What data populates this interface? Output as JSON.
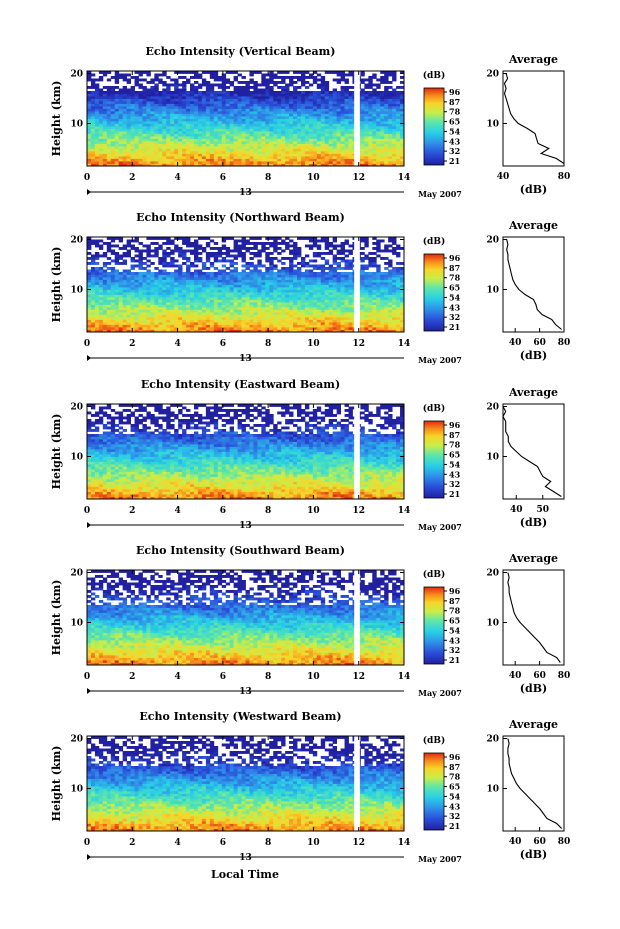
{
  "chart_data": [
    {
      "type": "heatmap",
      "title": "Echo Intensity (Vertical Beam)",
      "ylabel": "Height (km)",
      "x_ticks": [
        "0",
        "2",
        "4",
        "6",
        "8",
        "10",
        "12",
        "14"
      ],
      "y_ticks": [
        "20",
        "10"
      ],
      "date_label": "13",
      "month_label": "May 2007",
      "xlim": [
        0,
        14
      ],
      "ylim": [
        1.5,
        20.5
      ],
      "colorbar": {
        "unit": "(dB)",
        "ticks": [
          "96",
          "87",
          "78",
          "65",
          "54",
          "43",
          "32",
          "21"
        ]
      },
      "data_gap": [
        11.8,
        12.05
      ],
      "profile": {
        "title": "Average",
        "xlabel": "(dB)",
        "x_ticks": [
          "40",
          "80"
        ],
        "xlim": [
          40,
          80
        ],
        "y_ticks": [
          "20",
          "10"
        ],
        "heights": [
          2,
          3,
          4,
          5,
          6,
          7,
          8,
          9,
          10,
          11,
          12,
          13,
          14,
          15,
          16,
          17,
          18,
          19,
          20
        ],
        "values": [
          80,
          75,
          65,
          70,
          63,
          62,
          61,
          56,
          50,
          47,
          45,
          44,
          43,
          42,
          41,
          42,
          41,
          43,
          42
        ]
      }
    },
    {
      "type": "heatmap",
      "title": "Echo Intensity (Northward Beam)",
      "ylabel": "Height (km)",
      "x_ticks": [
        "0",
        "2",
        "4",
        "6",
        "8",
        "10",
        "12",
        "14"
      ],
      "y_ticks": [
        "20",
        "10"
      ],
      "date_label": "13",
      "month_label": "May 2007",
      "xlim": [
        0,
        14
      ],
      "ylim": [
        1.5,
        20.5
      ],
      "colorbar": {
        "unit": "(dB)",
        "ticks": [
          "96",
          "87",
          "78",
          "65",
          "54",
          "43",
          "32",
          "21"
        ]
      },
      "data_gap": [
        11.8,
        12.05
      ],
      "profile": {
        "title": "Average",
        "xlabel": "(dB)",
        "x_ticks": [
          "40",
          "60",
          "80"
        ],
        "xlim": [
          30,
          80
        ],
        "y_ticks": [
          "20",
          "10"
        ],
        "heights": [
          2,
          3,
          4,
          5,
          6,
          7,
          8,
          9,
          10,
          11,
          12,
          13,
          14,
          15,
          16,
          17,
          18,
          19,
          20
        ],
        "values": [
          78,
          73,
          70,
          62,
          58,
          57,
          55,
          48,
          43,
          40,
          38,
          37,
          36,
          35,
          34,
          34,
          33,
          34,
          33
        ]
      }
    },
    {
      "type": "heatmap",
      "title": "Echo Intensity (Eastward Beam)",
      "ylabel": "Height (km)",
      "x_ticks": [
        "0",
        "2",
        "4",
        "6",
        "8",
        "10",
        "12",
        "14"
      ],
      "y_ticks": [
        "20",
        "10"
      ],
      "date_label": "13",
      "month_label": "May 2007",
      "xlim": [
        0,
        14
      ],
      "ylim": [
        1.5,
        20.5
      ],
      "colorbar": {
        "unit": "(dB)",
        "ticks": [
          "96",
          "87",
          "78",
          "65",
          "54",
          "43",
          "32",
          "21"
        ]
      },
      "data_gap": [
        11.8,
        12.05
      ],
      "profile": {
        "title": "Average",
        "xlabel": "(dB)",
        "x_ticks": [
          "40",
          "50"
        ],
        "xlim": [
          35,
          58
        ],
        "y_ticks": [
          "20",
          "10"
        ],
        "heights": [
          2,
          3,
          4,
          5,
          6,
          7,
          8,
          9,
          10,
          11,
          12,
          13,
          14,
          15,
          16,
          17,
          18,
          19,
          20
        ],
        "values": [
          57,
          54,
          51,
          53,
          50,
          49,
          48,
          45,
          42,
          40,
          38,
          37,
          37,
          36,
          36,
          36,
          35,
          36,
          35
        ]
      }
    },
    {
      "type": "heatmap",
      "title": "Echo Intensity (Southward Beam)",
      "ylabel": "Height (km)",
      "x_ticks": [
        "0",
        "2",
        "4",
        "6",
        "8",
        "10",
        "12",
        "14"
      ],
      "y_ticks": [
        "20",
        "10"
      ],
      "date_label": "13",
      "month_label": "May 2007",
      "xlim": [
        0,
        14
      ],
      "ylim": [
        1.5,
        20.5
      ],
      "colorbar": {
        "unit": "(dB)",
        "ticks": [
          "96",
          "87",
          "78",
          "65",
          "54",
          "43",
          "32",
          "21"
        ]
      },
      "data_gap": [
        11.8,
        12.05
      ],
      "profile": {
        "title": "Average",
        "xlabel": "(dB)",
        "x_ticks": [
          "40",
          "60",
          "80"
        ],
        "xlim": [
          30,
          80
        ],
        "y_ticks": [
          "20",
          "10"
        ],
        "heights": [
          2,
          3,
          4,
          5,
          6,
          7,
          8,
          9,
          10,
          11,
          12,
          13,
          14,
          15,
          16,
          17,
          18,
          19,
          20
        ],
        "values": [
          77,
          74,
          66,
          63,
          60,
          56,
          52,
          48,
          44,
          41,
          39,
          38,
          37,
          36,
          35,
          35,
          34,
          35,
          34
        ]
      }
    },
    {
      "type": "heatmap",
      "title": "Echo Intensity (Westward Beam)",
      "ylabel": "Height (km)",
      "x_ticks": [
        "0",
        "2",
        "4",
        "6",
        "8",
        "10",
        "12",
        "14"
      ],
      "y_ticks": [
        "20",
        "10"
      ],
      "date_label": "13",
      "month_label": "May 2007",
      "xlim": [
        0,
        14
      ],
      "ylim": [
        1.5,
        20.5
      ],
      "colorbar": {
        "unit": "(dB)",
        "ticks": [
          "96",
          "87",
          "78",
          "65",
          "54",
          "43",
          "32",
          "21"
        ]
      },
      "data_gap": [
        11.8,
        12.05
      ],
      "profile": {
        "title": "Average",
        "xlabel": "(dB)",
        "x_ticks": [
          "40",
          "60",
          "80"
        ],
        "xlim": [
          30,
          80
        ],
        "y_ticks": [
          "20",
          "10"
        ],
        "heights": [
          2,
          3,
          4,
          5,
          6,
          7,
          8,
          9,
          10,
          11,
          12,
          13,
          14,
          15,
          16,
          17,
          18,
          19,
          20
        ],
        "values": [
          78,
          74,
          66,
          63,
          60,
          56,
          52,
          48,
          44,
          41,
          39,
          37,
          36,
          35,
          35,
          34,
          34,
          35,
          34
        ]
      }
    }
  ],
  "figure": {
    "xlabel": "Local Time"
  }
}
